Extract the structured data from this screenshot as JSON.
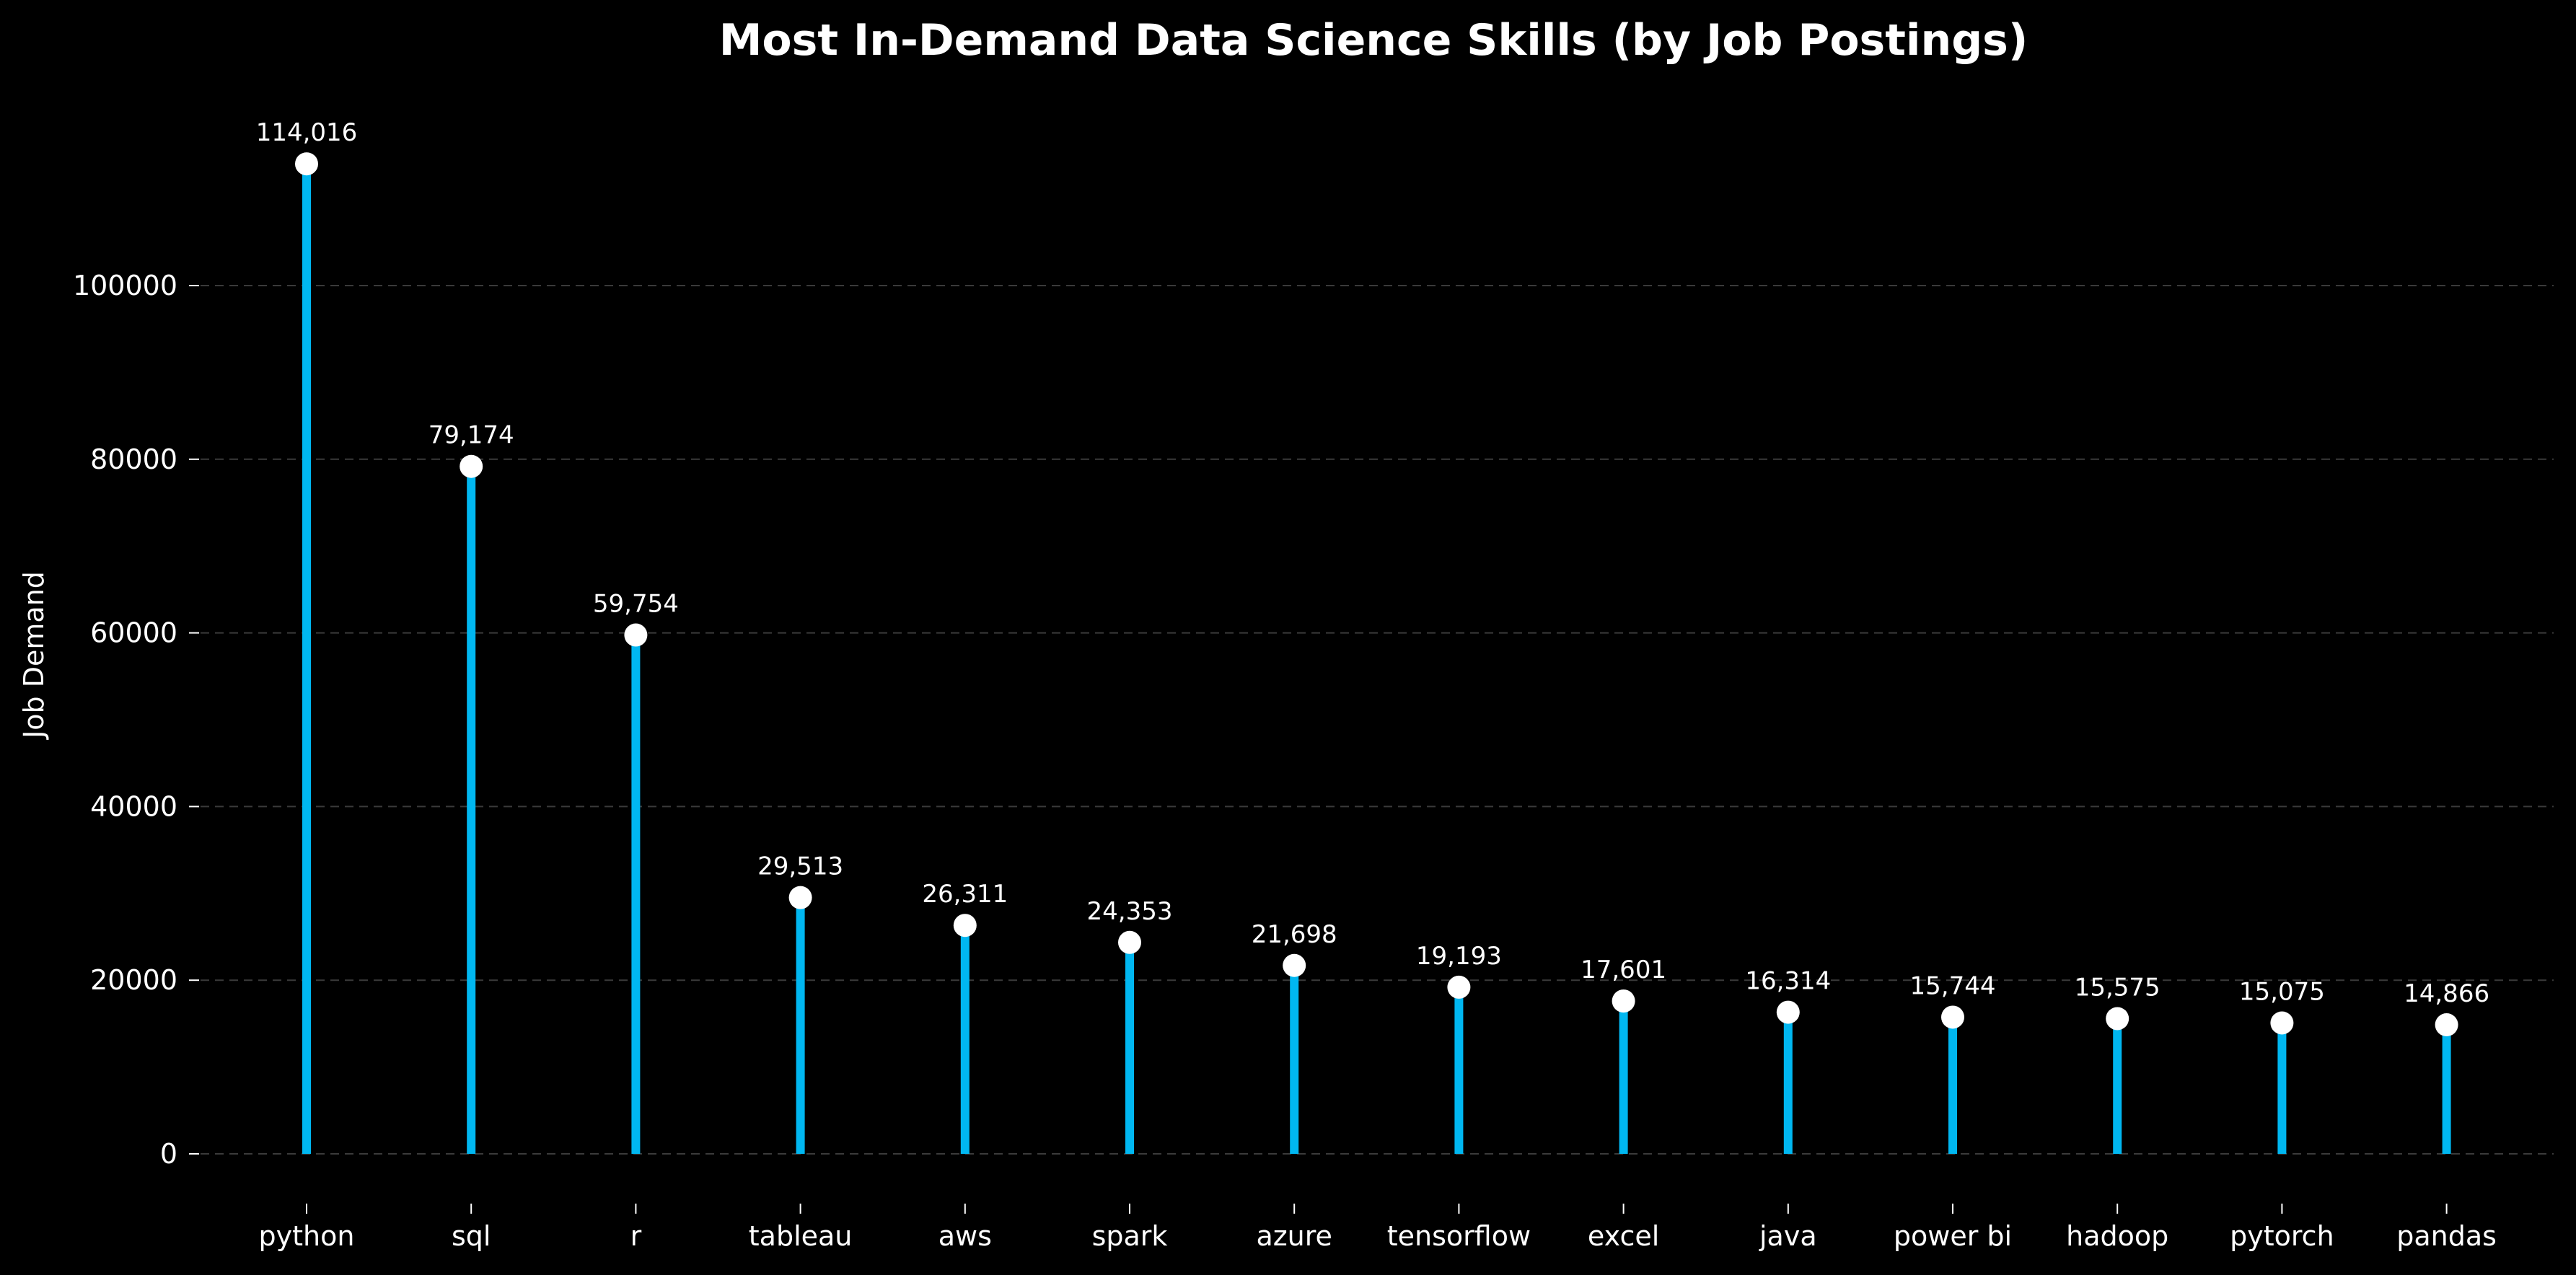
{
  "chart_data": {
    "type": "lollipop",
    "title": "Most In-Demand Data Science Skills (by Job Postings)",
    "xlabel": "",
    "ylabel": "Job Demand",
    "categories": [
      "python",
      "sql",
      "r",
      "tableau",
      "aws",
      "spark",
      "azure",
      "tensorflow",
      "excel",
      "java",
      "power bi",
      "hadoop",
      "pytorch",
      "pandas"
    ],
    "values": [
      114016,
      79174,
      59754,
      29513,
      26311,
      24353,
      21698,
      19193,
      17601,
      16314,
      15744,
      15575,
      15075,
      14866
    ],
    "value_labels": [
      "114,016",
      "79,174",
      "59,754",
      "29,513",
      "26,311",
      "24,353",
      "21,698",
      "19,193",
      "17,601",
      "16,314",
      "15,744",
      "15,575",
      "15,075",
      "14,866"
    ],
    "yticks": [
      0,
      20000,
      40000,
      60000,
      80000,
      100000
    ],
    "ylim": [
      -6000,
      120000
    ],
    "grid": "y-dashed",
    "colors": {
      "background": "#000000",
      "stem": "#00b7f1",
      "marker": "#ffffff",
      "grid": "#3a3a3a",
      "text": "#ffffff"
    }
  }
}
